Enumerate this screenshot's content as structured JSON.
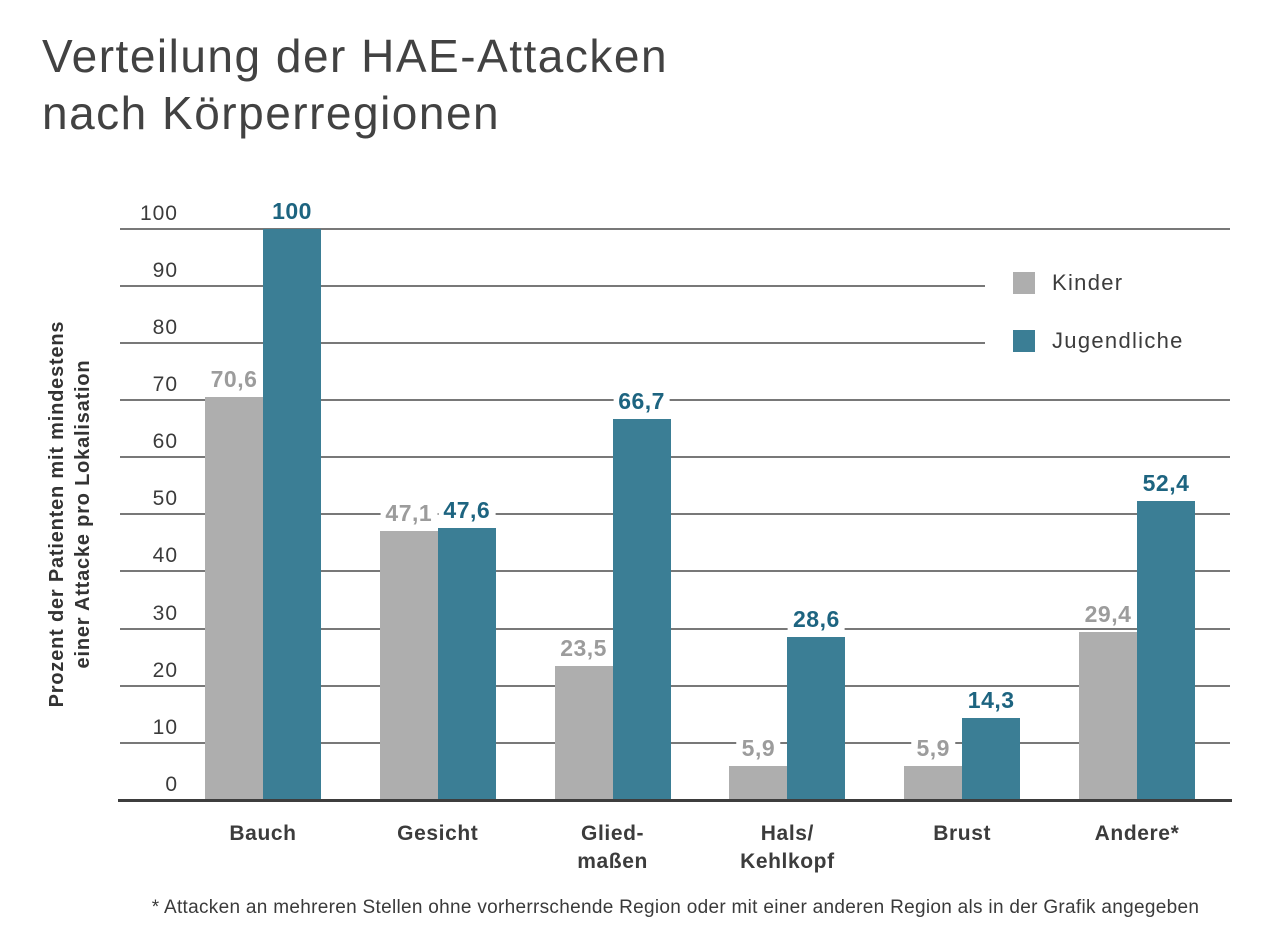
{
  "title": {
    "line1": "Verteilung der HAE-Attacken",
    "line2": "nach Körperregionen"
  },
  "footnote": "* Attacken an mehreren Stellen ohne vorherrschende Region oder mit einer anderen Region als in der Grafik angegeben",
  "chart_data": {
    "type": "bar",
    "title": "Verteilung der HAE-Attacken nach Körperregionen",
    "categories": [
      "Bauch",
      "Gesicht",
      "Gliedmaßen",
      "Hals/Kehlkopf",
      "Brust",
      "Andere*"
    ],
    "category_display": [
      [
        "Bauch"
      ],
      [
        "Gesicht"
      ],
      [
        "Glied-",
        "maßen"
      ],
      [
        "Hals/",
        "Kehlkopf"
      ],
      [
        "Brust"
      ],
      [
        "Andere*"
      ]
    ],
    "series": [
      {
        "name": "Kinder",
        "color": "#aeaeae",
        "label_color": "#9c9c9c",
        "values": [
          70.6,
          47.1,
          23.5,
          5.9,
          5.9,
          29.4
        ],
        "labels": [
          "70,6",
          "47,1",
          "23,5",
          "5,9",
          "5,9",
          "29,4"
        ]
      },
      {
        "name": "Jugendliche",
        "color": "#3b7e95",
        "label_color": "#1d6480",
        "values": [
          100,
          47.6,
          66.7,
          28.6,
          14.3,
          52.4
        ],
        "labels": [
          "100",
          "47,6",
          "66,7",
          "28,6",
          "14,3",
          "52,4"
        ]
      }
    ],
    "xlabel": "",
    "ylabel": "Prozent der Patienten mit mindestens einer Attacke pro Lokalisation",
    "ylabel_lines": [
      "Prozent der Patienten mit mindestens",
      "einer Attacke pro Lokalisation"
    ],
    "yticks": [
      0,
      10,
      20,
      30,
      40,
      50,
      60,
      70,
      80,
      90,
      100
    ],
    "ylim": [
      0,
      100
    ],
    "grid": true,
    "gridline_color": "#787878",
    "axis_color": "#3d3d3d",
    "legend_position": "upper right"
  }
}
